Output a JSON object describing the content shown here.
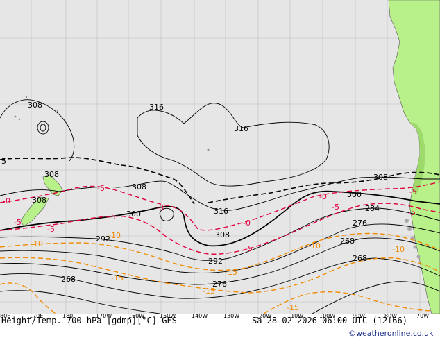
{
  "map": {
    "footer_left": "Height/Temp. 700 hPa [gdmp][°C] GFS",
    "footer_right": "Sa 28-02-2026 06:00 UTC (12+66)",
    "credit": "©weatheronline.co.uk",
    "lon_ticks": [
      "80E",
      "170E",
      "180",
      "170W",
      "160W",
      "150W",
      "140W",
      "130W",
      "120W",
      "110W",
      "100W",
      "90W",
      "80W",
      "70W"
    ],
    "height_labels": [
      "308",
      "316",
      "316",
      "308",
      "308",
      "308",
      "300",
      "316",
      "308",
      "300",
      "308",
      "292",
      "292",
      "284",
      "276",
      "268",
      "268",
      "276",
      "268"
    ],
    "temp_labels_red": [
      "-5",
      "-5",
      "-5",
      "-5",
      "-0",
      "-0",
      "-5",
      "-5",
      "-5",
      "-0",
      "-0",
      "-5"
    ],
    "temp_labels_orange": [
      "-10",
      "-10",
      "-10",
      "-10",
      "-15",
      "-15",
      "-15",
      "-15"
    ],
    "colors": {
      "ocean": "#e6e6e6",
      "land": "#b8f08a",
      "height_contour": "#000000",
      "temp_red": "#e0003c",
      "temp_orange": "#f08a00",
      "dashed_black": "#000000"
    }
  }
}
